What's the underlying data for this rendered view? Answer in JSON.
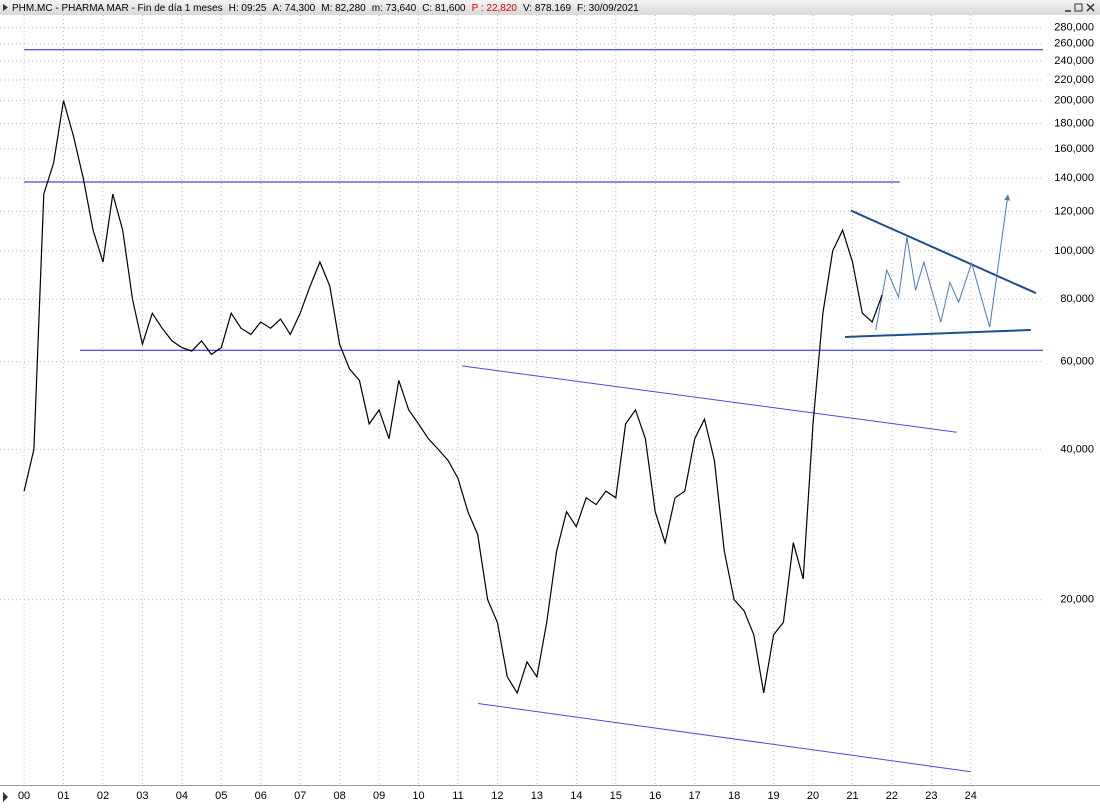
{
  "chart_data": {
    "type": "line",
    "header": [
      {
        "text": "PHM.MC - PHARMA MAR - Fin de día 1 meses",
        "color": "#000000"
      },
      {
        "text": "H: 09:25",
        "color": "#000000"
      },
      {
        "text": "A: 74,300",
        "color": "#000000"
      },
      {
        "text": "M: 82,280",
        "color": "#000000"
      },
      {
        "text": "m: 73,640",
        "color": "#000000"
      },
      {
        "text": "C: 81,600",
        "color": "#000000"
      },
      {
        "text": "P : 22,820",
        "color": "#e00000"
      },
      {
        "text": "V: 878.169",
        "color": "#000000"
      },
      {
        "text": "F: 30/09/2021",
        "color": "#000000"
      }
    ],
    "log_scale": true,
    "grid": true,
    "xlim": [
      1999.39,
      2025.83
    ],
    "ylim": [
      8.5,
      297
    ],
    "xticks": [
      {
        "value": 2000,
        "label": "00"
      },
      {
        "value": 2001,
        "label": "01"
      },
      {
        "value": 2002,
        "label": "02"
      },
      {
        "value": 2003,
        "label": "03"
      },
      {
        "value": 2004,
        "label": "04"
      },
      {
        "value": 2005,
        "label": "05"
      },
      {
        "value": 2006,
        "label": "06"
      },
      {
        "value": 2007,
        "label": "07"
      },
      {
        "value": 2008,
        "label": "08"
      },
      {
        "value": 2009,
        "label": "09"
      },
      {
        "value": 2010,
        "label": "10"
      },
      {
        "value": 2011,
        "label": "11"
      },
      {
        "value": 2012,
        "label": "12"
      },
      {
        "value": 2013,
        "label": "13"
      },
      {
        "value": 2014,
        "label": "14"
      },
      {
        "value": 2015,
        "label": "15"
      },
      {
        "value": 2016,
        "label": "16"
      },
      {
        "value": 2017,
        "label": "17"
      },
      {
        "value": 2018,
        "label": "18"
      },
      {
        "value": 2019,
        "label": "19"
      },
      {
        "value": 2020,
        "label": "20"
      },
      {
        "value": 2021,
        "label": "21"
      },
      {
        "value": 2022,
        "label": "22"
      },
      {
        "value": 2023,
        "label": "23"
      },
      {
        "value": 2024,
        "label": "24"
      }
    ],
    "yticks": [
      {
        "value": 20,
        "label": "20,000"
      },
      {
        "value": 40,
        "label": "40,000"
      },
      {
        "value": 60,
        "label": "60,000"
      },
      {
        "value": 80,
        "label": "80,000"
      },
      {
        "value": 100,
        "label": "100,000"
      },
      {
        "value": 120,
        "label": "120,000"
      },
      {
        "value": 140,
        "label": "140,000"
      },
      {
        "value": 160,
        "label": "160,000"
      },
      {
        "value": 180,
        "label": "180,000"
      },
      {
        "value": 200,
        "label": "200,000"
      },
      {
        "value": 220,
        "label": "220,000"
      },
      {
        "value": 240,
        "label": "240,000"
      },
      {
        "value": 260,
        "label": "260,000"
      },
      {
        "value": 280,
        "label": "280,000"
      }
    ],
    "series": [
      {
        "color": "#000000",
        "x": [
          2000.0,
          2000.25,
          2000.5,
          2000.75,
          2001.0,
          2001.25,
          2001.5,
          2001.75,
          2002.0,
          2002.25,
          2002.5,
          2002.75,
          2003.0,
          2003.25,
          2003.5,
          2003.75,
          2004.0,
          2004.25,
          2004.5,
          2004.75,
          2005.0,
          2005.25,
          2005.5,
          2005.75,
          2006.0,
          2006.25,
          2006.5,
          2006.75,
          2007.0,
          2007.25,
          2007.5,
          2007.75,
          2008.0,
          2008.25,
          2008.5,
          2008.75,
          2009.0,
          2009.25,
          2009.5,
          2009.75,
          2010.0,
          2010.25,
          2010.5,
          2010.75,
          2011.0,
          2011.25,
          2011.5,
          2011.75,
          2012.0,
          2012.25,
          2012.5,
          2012.75,
          2013.0,
          2013.25,
          2013.5,
          2013.75,
          2014.0,
          2014.25,
          2014.5,
          2014.75,
          2015.0,
          2015.25,
          2015.5,
          2015.75,
          2016.0,
          2016.25,
          2016.5,
          2016.75,
          2017.0,
          2017.25,
          2017.5,
          2017.75,
          2018.0,
          2018.25,
          2018.5,
          2018.75,
          2019.0,
          2019.25,
          2019.5,
          2019.75,
          2020.0,
          2020.25,
          2020.5,
          2020.75,
          2021.0,
          2021.25,
          2021.5,
          2021.75
        ],
        "values": [
          33,
          40,
          130,
          150,
          200,
          170,
          140,
          110,
          95,
          130,
          110,
          80,
          65,
          75,
          70,
          66,
          64,
          63,
          66,
          62,
          64,
          75,
          70,
          68,
          72,
          70,
          73,
          68,
          75,
          85,
          95,
          85,
          65,
          58,
          55,
          45,
          48,
          42,
          55,
          48,
          45,
          42,
          40,
          38,
          35,
          30,
          27,
          20,
          18,
          14,
          13,
          15,
          14,
          18,
          25,
          30,
          28,
          32,
          31,
          33,
          32,
          45,
          48,
          42,
          30,
          26,
          32,
          33,
          42,
          46,
          38,
          25,
          20,
          19,
          17,
          13,
          17,
          18,
          26,
          22,
          45,
          75,
          100,
          110,
          95,
          75,
          72,
          81.6
        ]
      }
    ],
    "trendlines": [
      {
        "x": [
          2000.0,
          2025.83
        ],
        "y": [
          253,
          253
        ],
        "color": "#1a1ad0",
        "width": 1
      },
      {
        "x": [
          2000.0,
          2022.2
        ],
        "y": [
          137.4,
          137.4
        ],
        "color": "#1a1ad0",
        "width": 1
      },
      {
        "x": [
          2001.42,
          2025.83
        ],
        "y": [
          63.2,
          63.2
        ],
        "color": "#1a1ad0",
        "width": 1
      },
      {
        "x": [
          2011.1,
          2023.64
        ],
        "y": [
          58.8,
          43.3
        ],
        "color": "#4a4ae0",
        "width": 1
      },
      {
        "x": [
          2011.51,
          2024.0
        ],
        "y": [
          12.38,
          9.04
        ],
        "color": "#4a4ae0",
        "width": 1
      },
      {
        "x": [
          2020.96,
          2025.65
        ],
        "y": [
          120.4,
          82.3
        ],
        "color": "#1f4e8c",
        "width": 2
      },
      {
        "x": [
          2020.81,
          2025.52
        ],
        "y": [
          67.2,
          69.4
        ],
        "color": "#1f4e8c",
        "width": 2
      },
      {
        "x": [
          2021.59,
          2021.87,
          2022.17,
          2022.38,
          2022.6,
          2022.81,
          2023.24,
          2023.47,
          2023.69,
          2024.02,
          2024.48,
          2024.94
        ],
        "y": [
          69.3,
          91.5,
          80.7,
          106.5,
          83.4,
          94.9,
          71.9,
          86.5,
          78.9,
          94.5,
          70.3,
          129.4
        ],
        "color": "#4a7ab5",
        "width": 1
      }
    ]
  }
}
